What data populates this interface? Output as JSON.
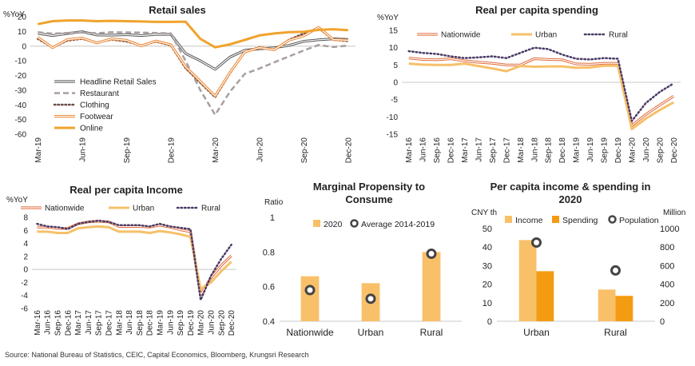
{
  "source": "Source: National Bureau of Statistics, CEIC, Capital Economics, Bloomberg, Krungsri Research",
  "chart_data": [
    {
      "id": "retail",
      "type": "line",
      "title": "Retail sales",
      "ylabel": "%YoY",
      "ylim": [
        -60,
        20
      ],
      "yticks": [
        -60,
        -50,
        -40,
        -30,
        -20,
        -10,
        0,
        10,
        20
      ],
      "x_tick_labels": [
        "Mar-19",
        "Jun-19",
        "Sep-19",
        "Dec-19",
        "Mar-20",
        "Jun-20",
        "Sep-20",
        "Dec-20"
      ],
      "x": [
        "Mar-19",
        "Apr-19",
        "May-19",
        "Jun-19",
        "Jul-19",
        "Aug-19",
        "Sep-19",
        "Oct-19",
        "Nov-19",
        "Dec-19",
        "Jan-20",
        "Feb-20",
        "Mar-20",
        "Apr-20",
        "May-20",
        "Jun-20",
        "Jul-20",
        "Aug-20",
        "Sep-20",
        "Oct-20",
        "Nov-20",
        "Dec-20"
      ],
      "legend_position": "lower-left",
      "series": [
        {
          "name": "Headline Retail Sales",
          "color": "#555555",
          "dash": "double",
          "values": [
            8.7,
            7.2,
            8.6,
            9.8,
            7.6,
            7.5,
            7.8,
            7.2,
            8.0,
            8.0,
            -5,
            -10,
            -15.8,
            -7.5,
            -2.8,
            -1.8,
            -1.1,
            0.5,
            3.3,
            4.3,
            5.0,
            4.6
          ]
        },
        {
          "name": "Restaurant",
          "color": "#a89e9e",
          "dash": "dashed",
          "values": [
            9.5,
            8.5,
            9.0,
            9.2,
            8.8,
            9.5,
            9.4,
            9.2,
            9.0,
            8.7,
            -10,
            -30,
            -46.8,
            -31.1,
            -18.9,
            -15.2,
            -11.0,
            -7.0,
            -2.9,
            0.8,
            -0.6,
            0.4
          ]
        },
        {
          "name": "Clothing",
          "color": "#6b4a48",
          "dash": "dotted",
          "values": [
            5.0,
            -1.0,
            3.8,
            5.0,
            2.5,
            4.5,
            3.2,
            0.5,
            3.0,
            0.5,
            -15,
            -25,
            -34.8,
            -18.5,
            -3.8,
            -0.7,
            -2.3,
            4.3,
            8.7,
            12.3,
            4.3,
            3.4
          ]
        },
        {
          "name": "Footwear",
          "color": "#e8822e",
          "dash": "double",
          "values": [
            6.0,
            -1.0,
            4.5,
            5.5,
            2.2,
            5.0,
            4.0,
            0.2,
            3.5,
            1.0,
            -14,
            -24,
            -34.0,
            -18.0,
            -4.0,
            -1.0,
            -2.5,
            4.0,
            7.0,
            12.8,
            4.5,
            4.0
          ]
        },
        {
          "name": "Online",
          "color": "#f0a32d",
          "dash": "solid",
          "values": [
            15.0,
            17.0,
            17.5,
            17.5,
            17.0,
            17.2,
            17.0,
            16.8,
            16.5,
            16.5,
            16.7,
            5,
            -0.8,
            1.2,
            4.2,
            7.3,
            8.6,
            9.5,
            9.8,
            11.1,
            11.5,
            10.9
          ]
        }
      ]
    },
    {
      "id": "spending",
      "type": "line",
      "title": "Real per capita spending",
      "ylabel": "%YoY",
      "ylim": [
        -15,
        15
      ],
      "yticks": [
        -15,
        -10,
        -5,
        0,
        5,
        10,
        15
      ],
      "x_tick_labels": [
        "Mar-16",
        "Jun-16",
        "Sep-16",
        "Dec-16",
        "Mar-17",
        "Jun-17",
        "Sep-17",
        "Dec-17",
        "Mar-18",
        "Jun-18",
        "Sep-18",
        "Dec-18",
        "Mar-19",
        "Jun-19",
        "Sep-19",
        "Dec-19",
        "Mar-20",
        "Jun-20",
        "Sep-20",
        "Dec-20"
      ],
      "legend_position": "top",
      "series": [
        {
          "name": "Nationwide",
          "color": "#e06a3a",
          "dash": "double",
          "values": [
            7.0,
            6.6,
            6.5,
            6.8,
            6.2,
            5.8,
            5.5,
            5.0,
            5.0,
            6.8,
            6.6,
            6.5,
            5.3,
            5.2,
            5.5,
            5.5,
            -12.5,
            -9.3,
            -6.6,
            -4.0
          ]
        },
        {
          "name": "Urban",
          "color": "#f6c06a",
          "dash": "solid",
          "values": [
            5.4,
            5.1,
            5.0,
            5.0,
            5.4,
            4.7,
            4.0,
            3.2,
            4.7,
            4.5,
            4.6,
            4.6,
            4.2,
            4.3,
            4.8,
            4.8,
            -13.5,
            -10.5,
            -8.0,
            -5.8
          ]
        },
        {
          "name": "Rural",
          "color": "#4a3a66",
          "dash": "dotted",
          "values": [
            9.0,
            8.5,
            8.2,
            7.5,
            7.0,
            7.2,
            7.5,
            7.0,
            8.5,
            10.0,
            9.6,
            8.0,
            6.8,
            6.6,
            7.0,
            6.8,
            -11.2,
            -6.0,
            -2.8,
            -0.3
          ]
        }
      ]
    },
    {
      "id": "income",
      "type": "line",
      "title": "Real per capita Income",
      "ylabel": "%YoY",
      "ylim": [
        -6,
        8
      ],
      "yticks": [
        -6,
        -4,
        -2,
        0,
        2,
        4,
        6,
        8
      ],
      "x_tick_labels": [
        "Mar-16",
        "Jun-16",
        "Sep-16",
        "Dec-16",
        "Mar-17",
        "Jun-17",
        "Sep-17",
        "Dec-17",
        "Mar-18",
        "Jun-18",
        "Sep-18",
        "Dec-18",
        "Mar-19",
        "Jun-19",
        "Sep-19",
        "Dec-19",
        "Mar-20",
        "Jun-20",
        "Sep-20",
        "Dec-20"
      ],
      "legend_position": "top",
      "series": [
        {
          "name": "Nationwide",
          "color": "#e06a3a",
          "dash": "double",
          "values": [
            6.5,
            6.5,
            6.3,
            6.3,
            7.0,
            7.3,
            7.4,
            7.3,
            6.6,
            6.6,
            6.6,
            6.5,
            6.8,
            6.5,
            6.1,
            5.8,
            -3.9,
            -1.3,
            0.6,
            2.1
          ]
        },
        {
          "name": "Urban",
          "color": "#f6c06a",
          "dash": "solid",
          "values": [
            5.8,
            5.8,
            5.6,
            5.6,
            6.3,
            6.5,
            6.6,
            6.5,
            5.8,
            5.8,
            5.8,
            5.6,
            5.9,
            5.7,
            5.4,
            5.0,
            -3.0,
            -2.0,
            -0.3,
            1.2
          ]
        },
        {
          "name": "Rural",
          "color": "#4a3a66",
          "dash": "dotted",
          "values": [
            7.0,
            6.6,
            6.5,
            6.2,
            7.0,
            7.3,
            7.5,
            7.3,
            6.8,
            6.8,
            6.8,
            6.6,
            7.0,
            6.6,
            6.4,
            6.2,
            -4.7,
            -1.0,
            1.6,
            3.8
          ]
        }
      ]
    },
    {
      "id": "mpc",
      "type": "bar",
      "title": [
        "Marginal Propensity to",
        "Consume"
      ],
      "ylabel": "Ratio",
      "ylim": [
        0.4,
        1
      ],
      "yticks": [
        0.4,
        0.6,
        0.8,
        1
      ],
      "categories": [
        "Nationwide",
        "Urban",
        "Rural"
      ],
      "legend_position": "top",
      "series": [
        {
          "name": "2020",
          "kind": "bar",
          "color": "#f9c06a",
          "values": [
            0.66,
            0.62,
            0.8
          ]
        },
        {
          "name": "Average 2014-2019",
          "kind": "marker",
          "color": "#444444",
          "values": [
            0.58,
            0.53,
            0.79
          ]
        }
      ]
    },
    {
      "id": "percapita",
      "type": "bar",
      "title": [
        "Per capita income & spending in",
        "2020"
      ],
      "ylabel": "CNY th",
      "y2label": "Million",
      "ylim": [
        0,
        50
      ],
      "yticks": [
        0,
        10,
        20,
        30,
        40,
        50
      ],
      "y2lim": [
        0,
        1000
      ],
      "y2ticks": [
        0,
        200,
        400,
        600,
        800,
        1000
      ],
      "categories": [
        "Urban",
        "Rural"
      ],
      "legend_position": "top",
      "series": [
        {
          "name": "Income",
          "kind": "bar",
          "color": "#f9c06a",
          "values": [
            43.8,
            17.1
          ]
        },
        {
          "name": "Spending",
          "kind": "bar",
          "color": "#f39c12",
          "values": [
            27.0,
            13.7
          ]
        },
        {
          "name": "Population",
          "kind": "marker",
          "axis": "right",
          "color": "#444444",
          "values": [
            849,
            548
          ]
        }
      ]
    }
  ]
}
